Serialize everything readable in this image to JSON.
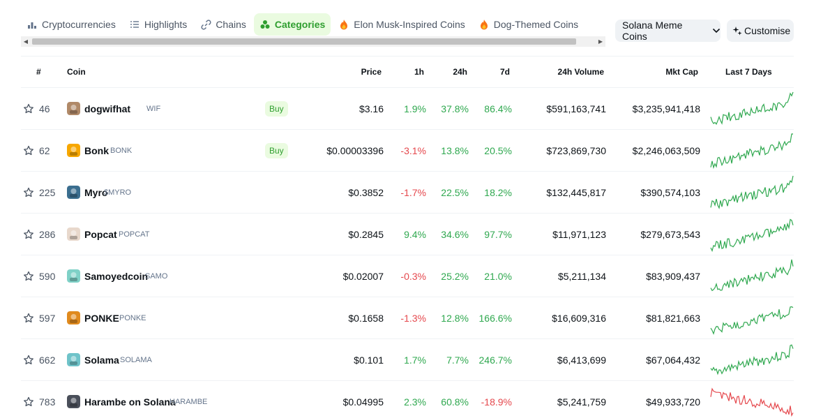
{
  "tabs": [
    {
      "label": "Cryptocurrencies",
      "icon": "bar-chart-icon",
      "active": false
    },
    {
      "label": "Highlights",
      "icon": "list-icon",
      "active": false
    },
    {
      "label": "Chains",
      "icon": "link-icon",
      "active": false
    },
    {
      "label": "Categories",
      "icon": "shapes-icon",
      "active": true
    },
    {
      "label": "Elon Musk-Inspired Coins",
      "icon": "fire-icon",
      "active": false
    },
    {
      "label": "Dog-Themed Coins",
      "icon": "fire-icon",
      "active": false
    }
  ],
  "controls": {
    "category_dropdown": "Solana Meme Coins",
    "customise_label": "Customise"
  },
  "colors": {
    "accent": "#2f9e2f",
    "accent_bg": "#eafbe0",
    "positive": "#2fa84f",
    "negative": "#e5484d"
  },
  "table": {
    "headers": {
      "rank": "#",
      "coin": "Coin",
      "price": "Price",
      "h1": "1h",
      "h24": "24h",
      "d7": "7d",
      "volume": "24h Volume",
      "mcap": "Mkt Cap",
      "last7": "Last 7 Days"
    },
    "rows": [
      {
        "rank": "46",
        "name": "dogwifhat",
        "symbol": "WIF",
        "buy": "Buy",
        "price": "$3.16",
        "h1": "1.9%",
        "h24": "37.8%",
        "d7": "86.4%",
        "volume": "$591,163,741",
        "mcap": "$3,235,941,418",
        "logo_color": "#b08968",
        "trend": "up"
      },
      {
        "rank": "62",
        "name": "Bonk",
        "symbol": "BONK",
        "buy": "Buy",
        "price": "$0.00003396",
        "h1": "-3.1%",
        "h24": "13.8%",
        "d7": "20.5%",
        "volume": "$723,869,730",
        "mcap": "$2,246,063,509",
        "logo_color": "#f7a700",
        "trend": "up"
      },
      {
        "rank": "225",
        "name": "Myro",
        "symbol": "$MYRO",
        "buy": "",
        "price": "$0.3852",
        "h1": "-1.7%",
        "h24": "22.5%",
        "d7": "18.2%",
        "volume": "$132,445,817",
        "mcap": "$390,574,103",
        "logo_color": "#3b6e8f",
        "trend": "up"
      },
      {
        "rank": "286",
        "name": "Popcat",
        "symbol": "POPCAT",
        "buy": "",
        "price": "$0.2845",
        "h1": "9.4%",
        "h24": "34.6%",
        "d7": "97.7%",
        "volume": "$11,971,123",
        "mcap": "$279,673,543",
        "logo_color": "#e8d8cc",
        "trend": "up"
      },
      {
        "rank": "590",
        "name": "Samoyedcoin",
        "symbol": "SAMO",
        "buy": "",
        "price": "$0.02007",
        "h1": "-0.3%",
        "h24": "25.2%",
        "d7": "21.0%",
        "volume": "$5,211,134",
        "mcap": "$83,909,437",
        "logo_color": "#7fd1c7",
        "trend": "up"
      },
      {
        "rank": "597",
        "name": "PONKE",
        "symbol": "PONKE",
        "buy": "",
        "price": "$0.1658",
        "h1": "-1.3%",
        "h24": "12.8%",
        "d7": "166.6%",
        "volume": "$16,609,316",
        "mcap": "$81,821,663",
        "logo_color": "#e08a1e",
        "trend": "up"
      },
      {
        "rank": "662",
        "name": "Solama",
        "symbol": "SOLAMA",
        "buy": "",
        "price": "$0.101",
        "h1": "1.7%",
        "h24": "7.7%",
        "d7": "246.7%",
        "volume": "$6,413,699",
        "mcap": "$67,064,432",
        "logo_color": "#6fc3c9",
        "trend": "up"
      },
      {
        "rank": "783",
        "name": "Harambe on Solana",
        "symbol": "HARAMBE",
        "buy": "",
        "price": "$0.04995",
        "h1": "2.3%",
        "h24": "60.8%",
        "d7": "-18.9%",
        "volume": "$5,241,759",
        "mcap": "$49,933,720",
        "logo_color": "#4a4f5a",
        "trend": "down"
      }
    ]
  }
}
